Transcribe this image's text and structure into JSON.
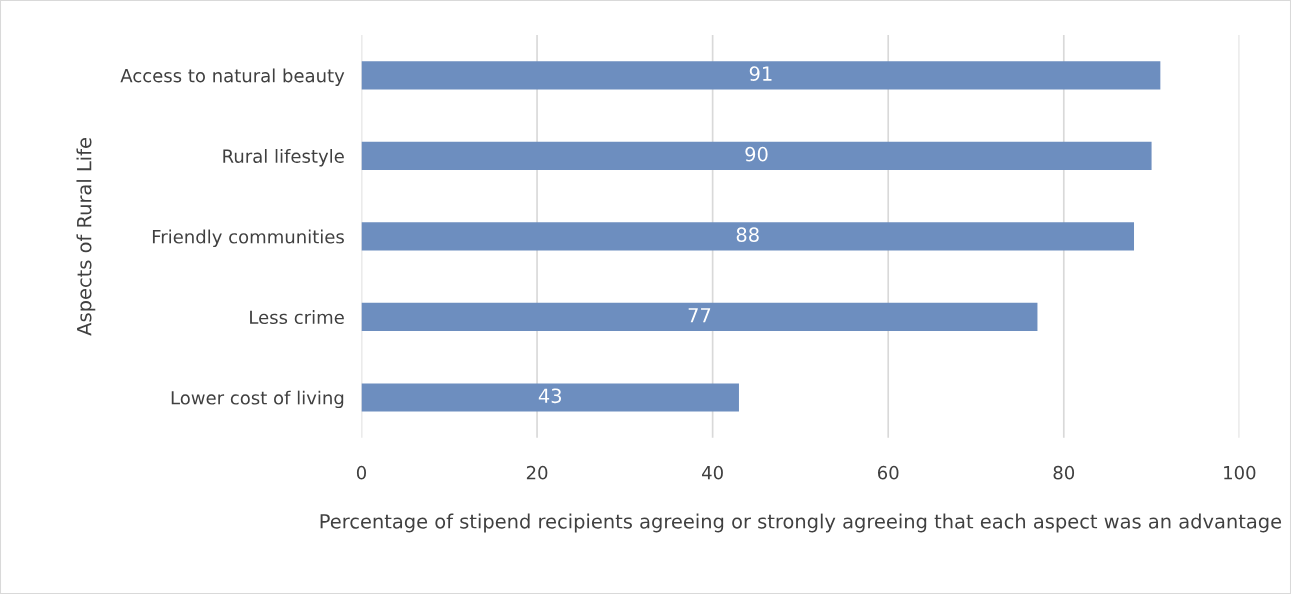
{
  "chart_data": {
    "type": "bar",
    "orientation": "horizontal",
    "categories": [
      "Access to natural beauty",
      "Rural lifestyle",
      "Friendly communities",
      "Less crime",
      "Lower cost of living"
    ],
    "values": [
      91,
      90,
      88,
      77,
      43
    ],
    "color": "#6d8ebf",
    "data_labels": true,
    "xlim": [
      0,
      100
    ],
    "xticks": [
      0,
      20,
      40,
      60,
      80,
      100
    ],
    "grid": "x",
    "xlabel": "Percentage of stipend recipients agreeing or strongly agreeing that each aspect was an advantage",
    "ylabel": "Aspects of Rural Life"
  }
}
